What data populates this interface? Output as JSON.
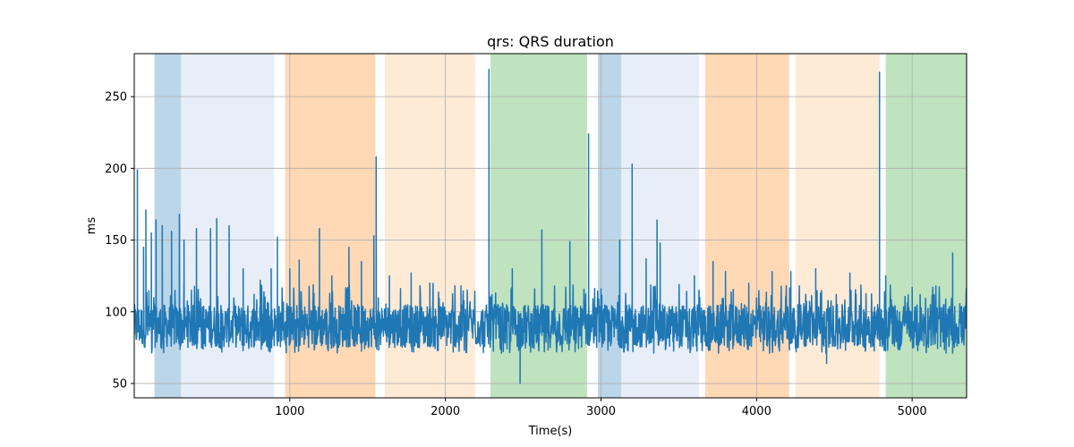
{
  "chart_data": {
    "type": "line",
    "title": "qrs: QRS duration",
    "xlabel": "Time(s)",
    "ylabel": "ms",
    "xlim": [
      0,
      5350
    ],
    "ylim": [
      40,
      280
    ],
    "xticks": [
      1000,
      2000,
      3000,
      4000,
      5000
    ],
    "yticks": [
      50,
      100,
      150,
      200,
      250
    ],
    "grid": true,
    "series": [
      {
        "color": "#1f77b4",
        "baseline": 90,
        "typical_range": [
          75,
          105
        ],
        "spikes": [
          {
            "x": 20,
            "y": 199
          },
          {
            "x": 60,
            "y": 145
          },
          {
            "x": 75,
            "y": 171
          },
          {
            "x": 110,
            "y": 155
          },
          {
            "x": 140,
            "y": 164
          },
          {
            "x": 180,
            "y": 160
          },
          {
            "x": 240,
            "y": 156
          },
          {
            "x": 290,
            "y": 168
          },
          {
            "x": 320,
            "y": 150
          },
          {
            "x": 400,
            "y": 158
          },
          {
            "x": 490,
            "y": 158
          },
          {
            "x": 530,
            "y": 165
          },
          {
            "x": 610,
            "y": 160
          },
          {
            "x": 700,
            "y": 130
          },
          {
            "x": 810,
            "y": 122
          },
          {
            "x": 880,
            "y": 130
          },
          {
            "x": 920,
            "y": 152
          },
          {
            "x": 1000,
            "y": 130
          },
          {
            "x": 1060,
            "y": 136
          },
          {
            "x": 1190,
            "y": 158
          },
          {
            "x": 1270,
            "y": 125
          },
          {
            "x": 1380,
            "y": 145
          },
          {
            "x": 1460,
            "y": 135
          },
          {
            "x": 1540,
            "y": 153
          },
          {
            "x": 1555,
            "y": 208
          },
          {
            "x": 1640,
            "y": 125
          },
          {
            "x": 1780,
            "y": 127
          },
          {
            "x": 1900,
            "y": 120
          },
          {
            "x": 2100,
            "y": 118
          },
          {
            "x": 2280,
            "y": 269
          },
          {
            "x": 2430,
            "y": 130
          },
          {
            "x": 2480,
            "y": 50
          },
          {
            "x": 2620,
            "y": 157
          },
          {
            "x": 2800,
            "y": 149
          },
          {
            "x": 2920,
            "y": 224
          },
          {
            "x": 3000,
            "y": 116
          },
          {
            "x": 3120,
            "y": 150
          },
          {
            "x": 3200,
            "y": 203
          },
          {
            "x": 3290,
            "y": 137
          },
          {
            "x": 3360,
            "y": 164
          },
          {
            "x": 3380,
            "y": 148
          },
          {
            "x": 3600,
            "y": 125
          },
          {
            "x": 3720,
            "y": 135
          },
          {
            "x": 3800,
            "y": 128
          },
          {
            "x": 3950,
            "y": 120
          },
          {
            "x": 4100,
            "y": 128
          },
          {
            "x": 4220,
            "y": 128
          },
          {
            "x": 4380,
            "y": 130
          },
          {
            "x": 4450,
            "y": 64
          },
          {
            "x": 4600,
            "y": 127
          },
          {
            "x": 4790,
            "y": 267
          },
          {
            "x": 4830,
            "y": 125
          },
          {
            "x": 5000,
            "y": 117
          },
          {
            "x": 5260,
            "y": 141
          }
        ]
      }
    ],
    "bands": [
      {
        "x0": 130,
        "x1": 300,
        "color": "#1f77b4",
        "opacity": 0.3
      },
      {
        "x0": 300,
        "x1": 900,
        "color": "#aec7e8",
        "opacity": 0.3
      },
      {
        "x0": 970,
        "x1": 1550,
        "color": "#ff7f0e",
        "opacity": 0.3
      },
      {
        "x0": 1610,
        "x1": 2190,
        "color": "#ffbb78",
        "opacity": 0.3
      },
      {
        "x0": 2290,
        "x1": 2910,
        "color": "#2ca02c",
        "opacity": 0.3
      },
      {
        "x0": 2980,
        "x1": 3130,
        "color": "#1f77b4",
        "opacity": 0.3
      },
      {
        "x0": 3130,
        "x1": 3630,
        "color": "#aec7e8",
        "opacity": 0.3
      },
      {
        "x0": 3670,
        "x1": 4210,
        "color": "#ff7f0e",
        "opacity": 0.3
      },
      {
        "x0": 4250,
        "x1": 4790,
        "color": "#ffbb78",
        "opacity": 0.3
      },
      {
        "x0": 4830,
        "x1": 5350,
        "color": "#2ca02c",
        "opacity": 0.3
      }
    ]
  }
}
